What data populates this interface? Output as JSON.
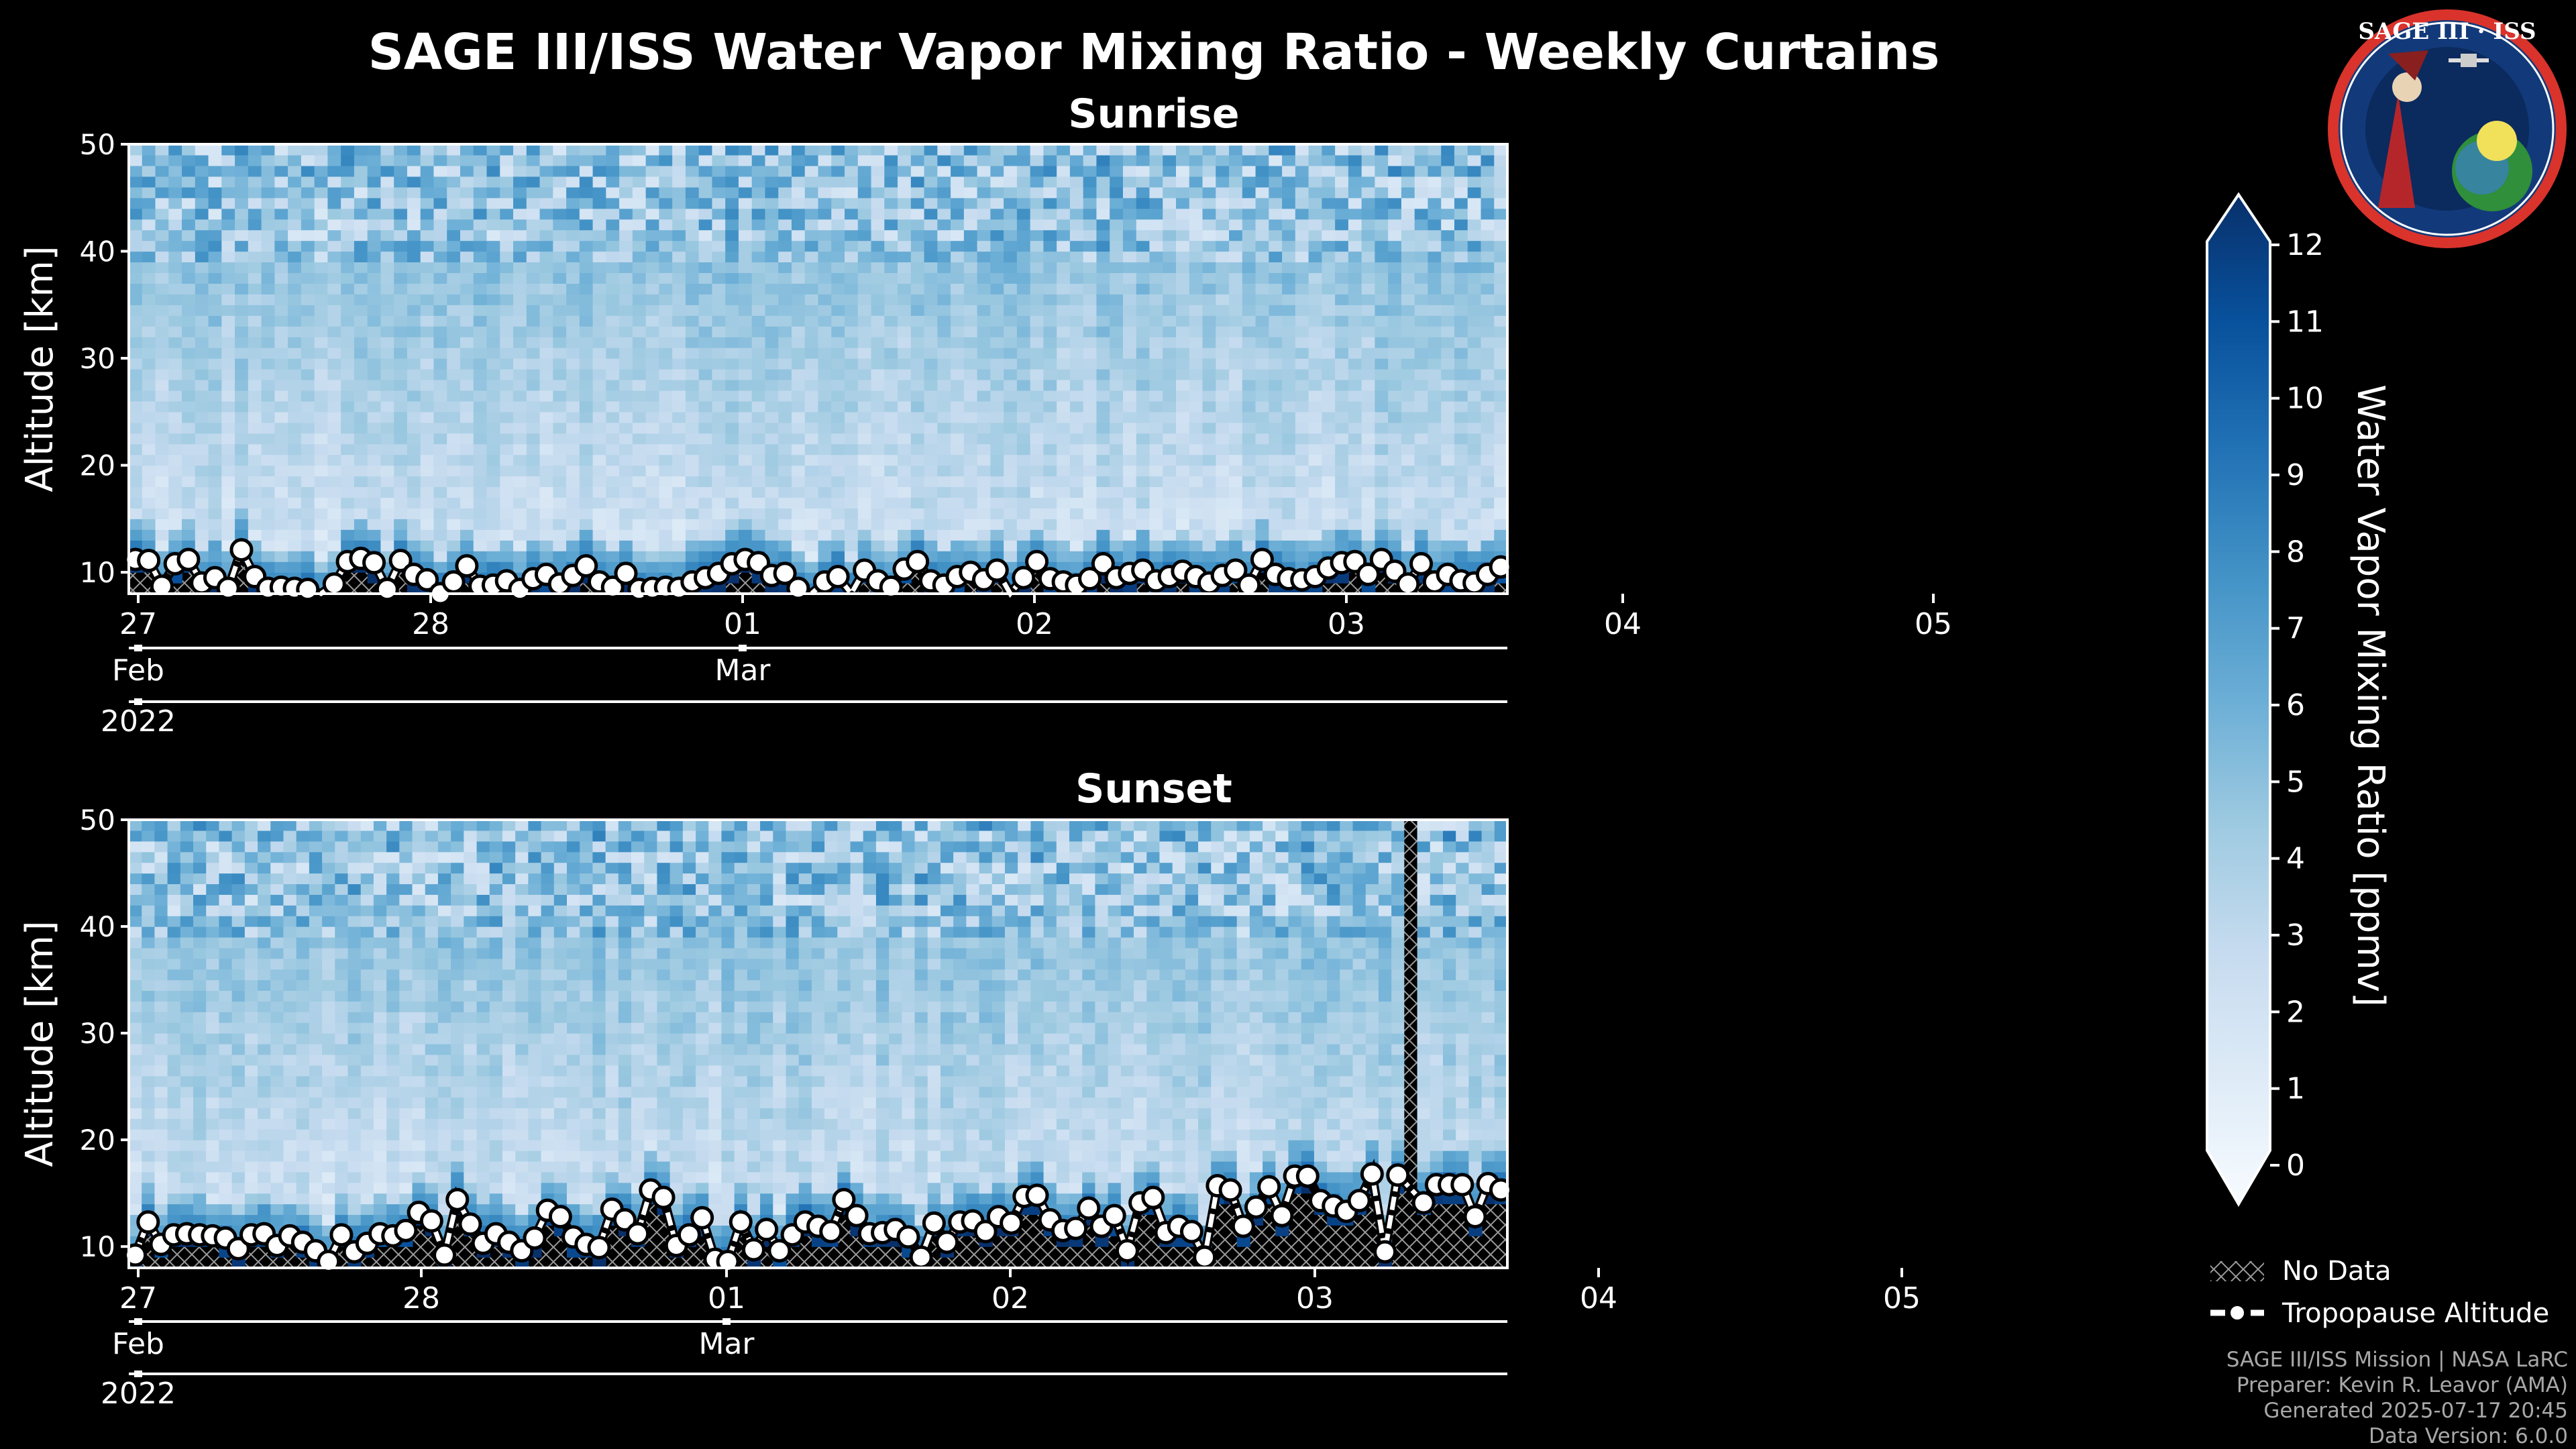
{
  "title": "SAGE III/ISS Water Vapor Mixing Ratio - Weekly Curtains",
  "logo": {
    "text": "SAGE III · ISS"
  },
  "colors": {
    "low": "#f7fbff",
    "mid": "#6baed6",
    "high": "#08306b",
    "no_data": "#000000",
    "tropopause": "#ffffff"
  },
  "chart_data": [
    {
      "type": "heatmap",
      "title": "Sunrise",
      "ylabel": "Altitude [km]",
      "ylim": [
        8,
        50
      ],
      "yticks": [
        10,
        20,
        30,
        40,
        50
      ],
      "x_ticks": [
        "27",
        "28",
        "01",
        "02",
        "03",
        "04",
        "05"
      ],
      "x_months": [
        "Feb",
        "Mar"
      ],
      "x_year": "2022",
      "tropopause_km": [
        11.2,
        11.1,
        8.7,
        10.8,
        11.2,
        9.0,
        9.5,
        8.5,
        12.1,
        9.6,
        8.5,
        8.6,
        8.5,
        8.4,
        7.8,
        8.9,
        11.0,
        11.3,
        10.9,
        8.4,
        11.1,
        9.8,
        9.3,
        8.0,
        9.1,
        10.6,
        8.7,
        8.8,
        9.2,
        8.4,
        9.4,
        9.8,
        8.9,
        9.7,
        10.6,
        9.1,
        8.6,
        9.9,
        8.4,
        8.5,
        8.6,
        8.5,
        9.1,
        9.5,
        9.9,
        10.8,
        11.2,
        10.9,
        9.7,
        9.9,
        8.5,
        7.9,
        9.1,
        9.6,
        7.8,
        10.2,
        9.2,
        8.6,
        10.3,
        11.0,
        9.2,
        8.8,
        9.6,
        10.0,
        9.3,
        10.2,
        7.9,
        9.5,
        11.0,
        9.4,
        9.1,
        8.8,
        9.4,
        10.8,
        9.5,
        9.9,
        10.2,
        9.2,
        9.6,
        10.1,
        9.6,
        9.0,
        9.7,
        10.2,
        8.8,
        11.2,
        9.8,
        9.4,
        9.3,
        9.6,
        10.4,
        10.9,
        11.0,
        9.8,
        11.2,
        10.1,
        8.9,
        10.8,
        9.1,
        9.8,
        9.2,
        9.0,
        9.8,
        10.5
      ]
    },
    {
      "type": "heatmap",
      "title": "Sunset",
      "ylabel": "Altitude [km]",
      "ylim": [
        8,
        50
      ],
      "yticks": [
        10,
        20,
        30,
        40,
        50
      ],
      "x_ticks": [
        "27",
        "28",
        "01",
        "02",
        "03",
        "04",
        "05"
      ],
      "x_months": [
        "Feb",
        "Mar"
      ],
      "x_year": "2022",
      "no_data_gap": [
        "03",
        "03"
      ],
      "tropopause_km": [
        9.2,
        12.3,
        10.2,
        11.1,
        11.2,
        11.1,
        11.0,
        10.8,
        9.8,
        11.1,
        11.2,
        10.1,
        11.0,
        10.4,
        9.6,
        8.6,
        11.1,
        9.5,
        10.3,
        11.2,
        11.0,
        11.5,
        13.2,
        12.4,
        9.2,
        14.4,
        12.1,
        10.3,
        11.2,
        10.4,
        9.6,
        10.8,
        13.4,
        12.8,
        10.9,
        10.2,
        9.9,
        13.5,
        12.5,
        11.2,
        15.3,
        14.6,
        10.1,
        11.1,
        12.7,
        8.8,
        8.6,
        12.3,
        9.7,
        11.6,
        9.6,
        11.1,
        12.3,
        11.9,
        11.4,
        14.4,
        12.9,
        11.2,
        11.3,
        11.6,
        10.9,
        9.0,
        12.2,
        10.4,
        12.3,
        12.4,
        11.4,
        12.8,
        12.2,
        14.7,
        14.8,
        12.5,
        11.5,
        11.7,
        13.6,
        11.9,
        12.9,
        9.6,
        14.1,
        14.6,
        11.3,
        11.9,
        11.4,
        9.0,
        15.7,
        15.3,
        11.9,
        13.7,
        15.6,
        12.9,
        16.6,
        16.6,
        14.3,
        13.8,
        13.3,
        14.3,
        16.8,
        9.5,
        16.7,
        15.8,
        14.1,
        15.8,
        15.8,
        15.8,
        12.8,
        15.9,
        15.3
      ]
    }
  ],
  "colorbar": {
    "label": "Water Vapor Mixing Ratio [ppmv]",
    "min": 0,
    "max": 12,
    "ticks": [
      "0",
      "1",
      "2",
      "3",
      "4",
      "5",
      "6",
      "7",
      "8",
      "9",
      "10",
      "11",
      "12"
    ]
  },
  "legend": {
    "no_data": "No Data",
    "tropopause": "Tropopause Altitude"
  },
  "footer": {
    "line1": "SAGE III/ISS Mission | NASA LaRC",
    "line2": "Preparer: Kevin R. Leavor (AMA)",
    "line3": "Generated 2025-07-17 20:45",
    "line4": "Data Version: 6.0.0"
  }
}
